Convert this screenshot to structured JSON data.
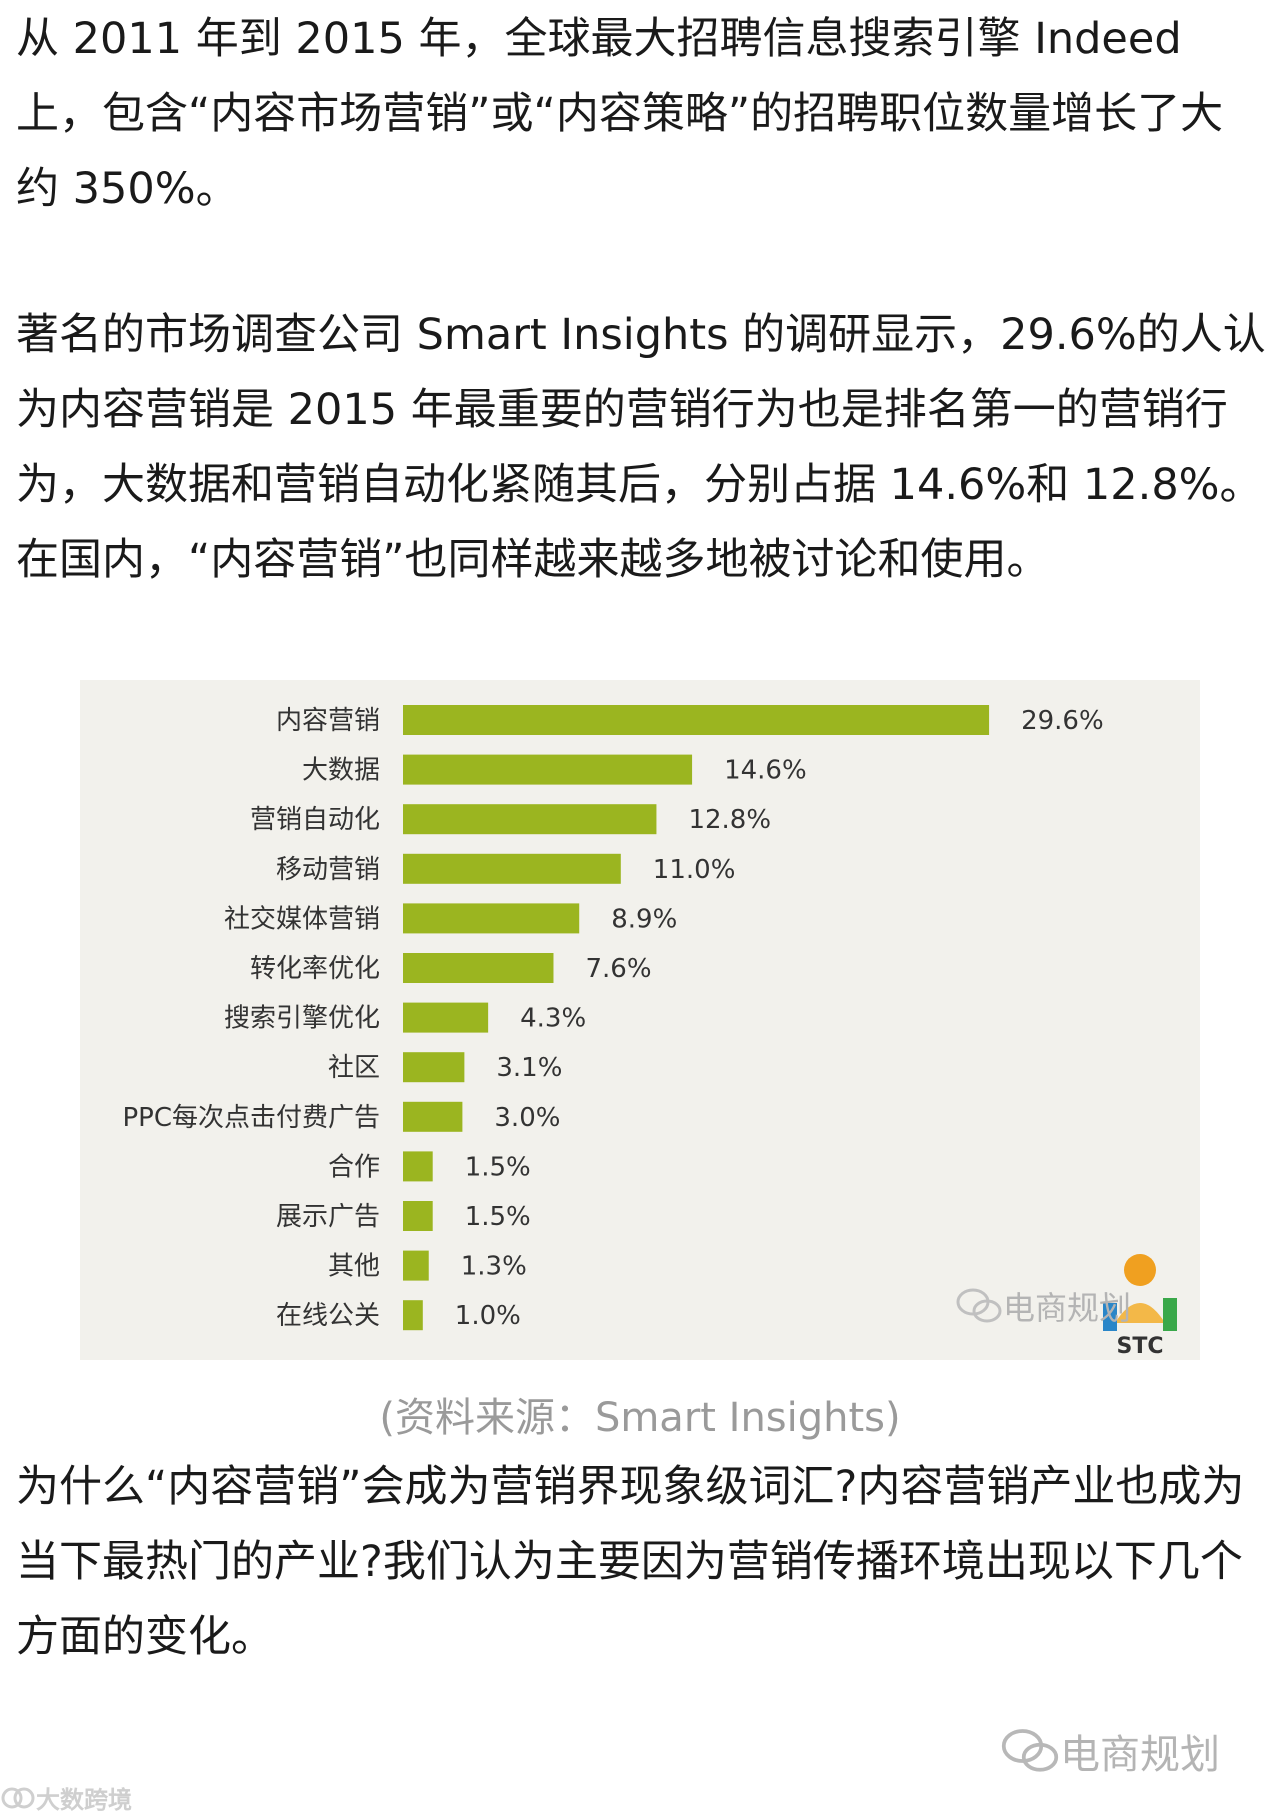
{
  "article": {
    "paragraph_1": "从 2011 年到 2015 年，全球最大招聘信息搜索引擎 Indeed 上，包含“内容市场营销”或“内容策略”的招聘职位数量增长了大约 350%。",
    "paragraph_2": "著名的市场调查公司 Smart Insights 的调研显示，29.6%的人认为内容营销是 2015 年最重要的营销行为也是排名第一的营销行为，大数据和营销自动化紧随其后，分别占据 14.6%和 12.8%。在国内，“内容营销”也同样越来越多地被讨论和使用。",
    "caption": "(资料来源：Smart Insights)",
    "paragraph_3": "为什么“内容营销”会成为营销界现象级词汇?内容营销产业也成为当下最热门的产业?我们认为主要因为营销传播环境出现以下几个方面的变化。"
  },
  "chart_data": {
    "type": "bar",
    "orientation": "horizontal",
    "categories": [
      "内容营销",
      "大数据",
      "营销自动化",
      "移动营销",
      "社交媒体营销",
      "转化率优化",
      "搜索引擎优化",
      "社区",
      "PPC每次点击付费广告",
      "合作",
      "展示广告",
      "其他",
      "在线公关"
    ],
    "values": [
      29.6,
      14.6,
      12.8,
      11.0,
      8.9,
      7.6,
      4.3,
      3.1,
      3.0,
      1.5,
      1.5,
      1.3,
      1.0
    ],
    "value_labels": [
      "29.6%",
      "14.6%",
      "12.8%",
      "11.0%",
      "8.9%",
      "7.6%",
      "4.3%",
      "3.1%",
      "3.0%",
      "1.5%",
      "1.5%",
      "1.3%",
      "1.0%"
    ],
    "unit": "%",
    "xlim": [
      0,
      30
    ],
    "grid": false,
    "bar_color": "#9bb520",
    "background_color": "#f2f1ec"
  },
  "watermarks": {
    "chart_watermark": "电商规划",
    "chart_logo_text": "STC",
    "page_watermark": "电商规划",
    "corner_logo": "大数跨境"
  }
}
